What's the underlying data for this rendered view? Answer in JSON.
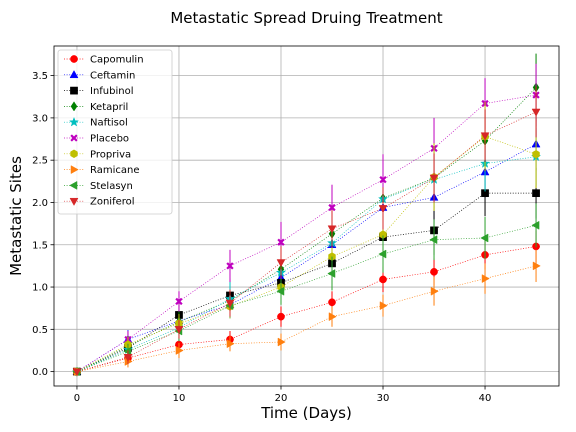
{
  "chart_data": {
    "type": "line",
    "title": "Metastatic Spread Druing Treatment",
    "xlabel": "Time (Days)",
    "ylabel": "Metastatic Sites",
    "xlim": [
      -2.25,
      47.25
    ],
    "ylim": [
      -0.17,
      3.85
    ],
    "xticks": [
      0,
      10,
      20,
      30,
      40
    ],
    "yticks": [
      0.0,
      0.5,
      1.0,
      1.5,
      2.0,
      2.5,
      3.0,
      3.5
    ],
    "grid": true,
    "legend_position": "top-left",
    "x": [
      0,
      5,
      10,
      15,
      20,
      25,
      30,
      35,
      40,
      45
    ],
    "series": [
      {
        "name": "Capomulin",
        "color": "#ff0000",
        "marker": "circle",
        "values": [
          0.0,
          0.16,
          0.32,
          0.38,
          0.65,
          0.82,
          1.09,
          1.18,
          1.38,
          1.48
        ],
        "errors": [
          0.0,
          0.07,
          0.09,
          0.1,
          0.12,
          0.13,
          0.15,
          0.16,
          0.17,
          0.19
        ]
      },
      {
        "name": "Ceftamin",
        "color": "#0000ff",
        "marker": "triangle-up",
        "values": [
          0.0,
          0.38,
          0.6,
          0.79,
          1.11,
          1.5,
          1.94,
          2.06,
          2.36,
          2.69
        ],
        "errors": [
          0.0,
          0.11,
          0.13,
          0.16,
          0.18,
          0.22,
          0.23,
          0.3,
          0.31,
          0.31
        ]
      },
      {
        "name": "Infubinol",
        "color": "#000000",
        "marker": "square",
        "values": [
          0.0,
          0.28,
          0.67,
          0.9,
          1.05,
          1.28,
          1.59,
          1.67,
          2.11,
          2.11
        ],
        "errors": [
          0.0,
          0.09,
          0.16,
          0.2,
          0.24,
          0.25,
          0.27,
          0.29,
          0.27,
          0.3
        ]
      },
      {
        "name": "Ketapril",
        "color": "#008000",
        "marker": "diamond",
        "values": [
          0.0,
          0.3,
          0.59,
          0.84,
          1.21,
          1.63,
          2.05,
          2.29,
          2.73,
          3.36
        ],
        "errors": [
          0.0,
          0.1,
          0.14,
          0.18,
          0.24,
          0.28,
          0.31,
          0.33,
          0.38,
          0.4
        ]
      },
      {
        "name": "Naftisol",
        "color": "#00bfbf",
        "marker": "star",
        "values": [
          0.0,
          0.26,
          0.52,
          0.86,
          1.17,
          1.52,
          2.04,
          2.27,
          2.46,
          2.54
        ],
        "errors": [
          0.0,
          0.09,
          0.16,
          0.2,
          0.23,
          0.25,
          0.32,
          0.34,
          0.33,
          0.34
        ]
      },
      {
        "name": "Placebo",
        "color": "#bf00bf",
        "marker": "x",
        "values": [
          0.0,
          0.38,
          0.83,
          1.25,
          1.53,
          1.94,
          2.27,
          2.64,
          3.17,
          3.27
        ],
        "errors": [
          0.0,
          0.1,
          0.12,
          0.19,
          0.24,
          0.27,
          0.3,
          0.36,
          0.3,
          0.37
        ]
      },
      {
        "name": "Propriva",
        "color": "#bfbf00",
        "marker": "hexagon",
        "values": [
          0.0,
          0.32,
          0.57,
          0.77,
          1.0,
          1.36,
          1.62,
          2.3,
          2.78,
          2.57
        ],
        "errors": [
          0.0,
          0.1,
          0.11,
          0.14,
          0.16,
          0.22,
          0.26,
          0.4,
          0.41,
          0.4
        ]
      },
      {
        "name": "Ramicane",
        "color": "#ff7f0e",
        "marker": "triangle-right",
        "values": [
          0.0,
          0.12,
          0.25,
          0.33,
          0.35,
          0.65,
          0.78,
          0.95,
          1.1,
          1.25
        ],
        "errors": [
          0.0,
          0.07,
          0.09,
          0.09,
          0.1,
          0.12,
          0.13,
          0.17,
          0.18,
          0.19
        ]
      },
      {
        "name": "Stelasyn",
        "color": "#2ca02c",
        "marker": "triangle-left",
        "values": [
          0.0,
          0.24,
          0.48,
          0.78,
          0.95,
          1.16,
          1.39,
          1.56,
          1.58,
          1.73
        ],
        "errors": [
          0.0,
          0.09,
          0.12,
          0.14,
          0.16,
          0.2,
          0.22,
          0.24,
          0.25,
          0.26
        ]
      },
      {
        "name": "Zoniferol",
        "color": "#d62728",
        "marker": "triangle-down",
        "values": [
          0.0,
          0.17,
          0.5,
          0.81,
          1.29,
          1.69,
          1.93,
          2.29,
          2.79,
          3.07
        ],
        "errors": [
          0.0,
          0.08,
          0.11,
          0.16,
          0.19,
          0.22,
          0.25,
          0.29,
          0.31,
          0.3
        ]
      }
    ]
  }
}
